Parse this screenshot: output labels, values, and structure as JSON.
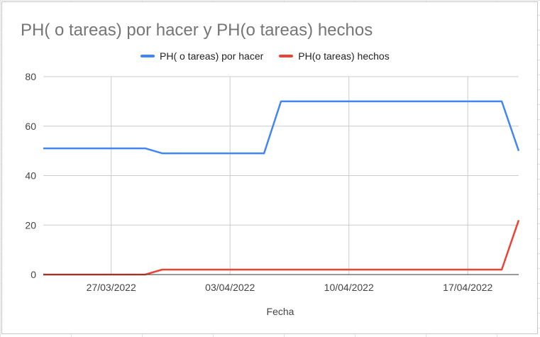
{
  "chart_data": {
    "type": "line",
    "title": "PH( o tareas) por hacer y PH(o tareas) hechos",
    "xlabel": "Fecha",
    "ylabel": "",
    "legend_position": "top",
    "grid": true,
    "ylim": [
      0,
      80
    ],
    "yticks": [
      0,
      20,
      40,
      60,
      80
    ],
    "x_range": [
      "2022-03-23",
      "2022-04-20"
    ],
    "xticks": [
      {
        "date": "2022-03-27",
        "label": "27/03/2022"
      },
      {
        "date": "2022-04-03",
        "label": "03/04/2022"
      },
      {
        "date": "2022-04-10",
        "label": "10/04/2022"
      },
      {
        "date": "2022-04-17",
        "label": "17/04/2022"
      }
    ],
    "series": [
      {
        "name": "PH( o tareas) por hacer",
        "color": "#4285f4",
        "points": [
          {
            "x": "2022-03-23",
            "y": 51
          },
          {
            "x": "2022-03-29",
            "y": 51
          },
          {
            "x": "2022-03-30",
            "y": 49
          },
          {
            "x": "2022-04-05",
            "y": 49
          },
          {
            "x": "2022-04-06",
            "y": 70
          },
          {
            "x": "2022-04-19",
            "y": 70
          },
          {
            "x": "2022-04-20",
            "y": 50
          }
        ]
      },
      {
        "name": "PH(o tareas) hechos",
        "color": "#ea4335",
        "points": [
          {
            "x": "2022-03-23",
            "y": 0
          },
          {
            "x": "2022-03-29",
            "y": 0
          },
          {
            "x": "2022-03-30",
            "y": 2
          },
          {
            "x": "2022-04-19",
            "y": 2
          },
          {
            "x": "2022-04-20",
            "y": 22
          }
        ]
      }
    ]
  }
}
